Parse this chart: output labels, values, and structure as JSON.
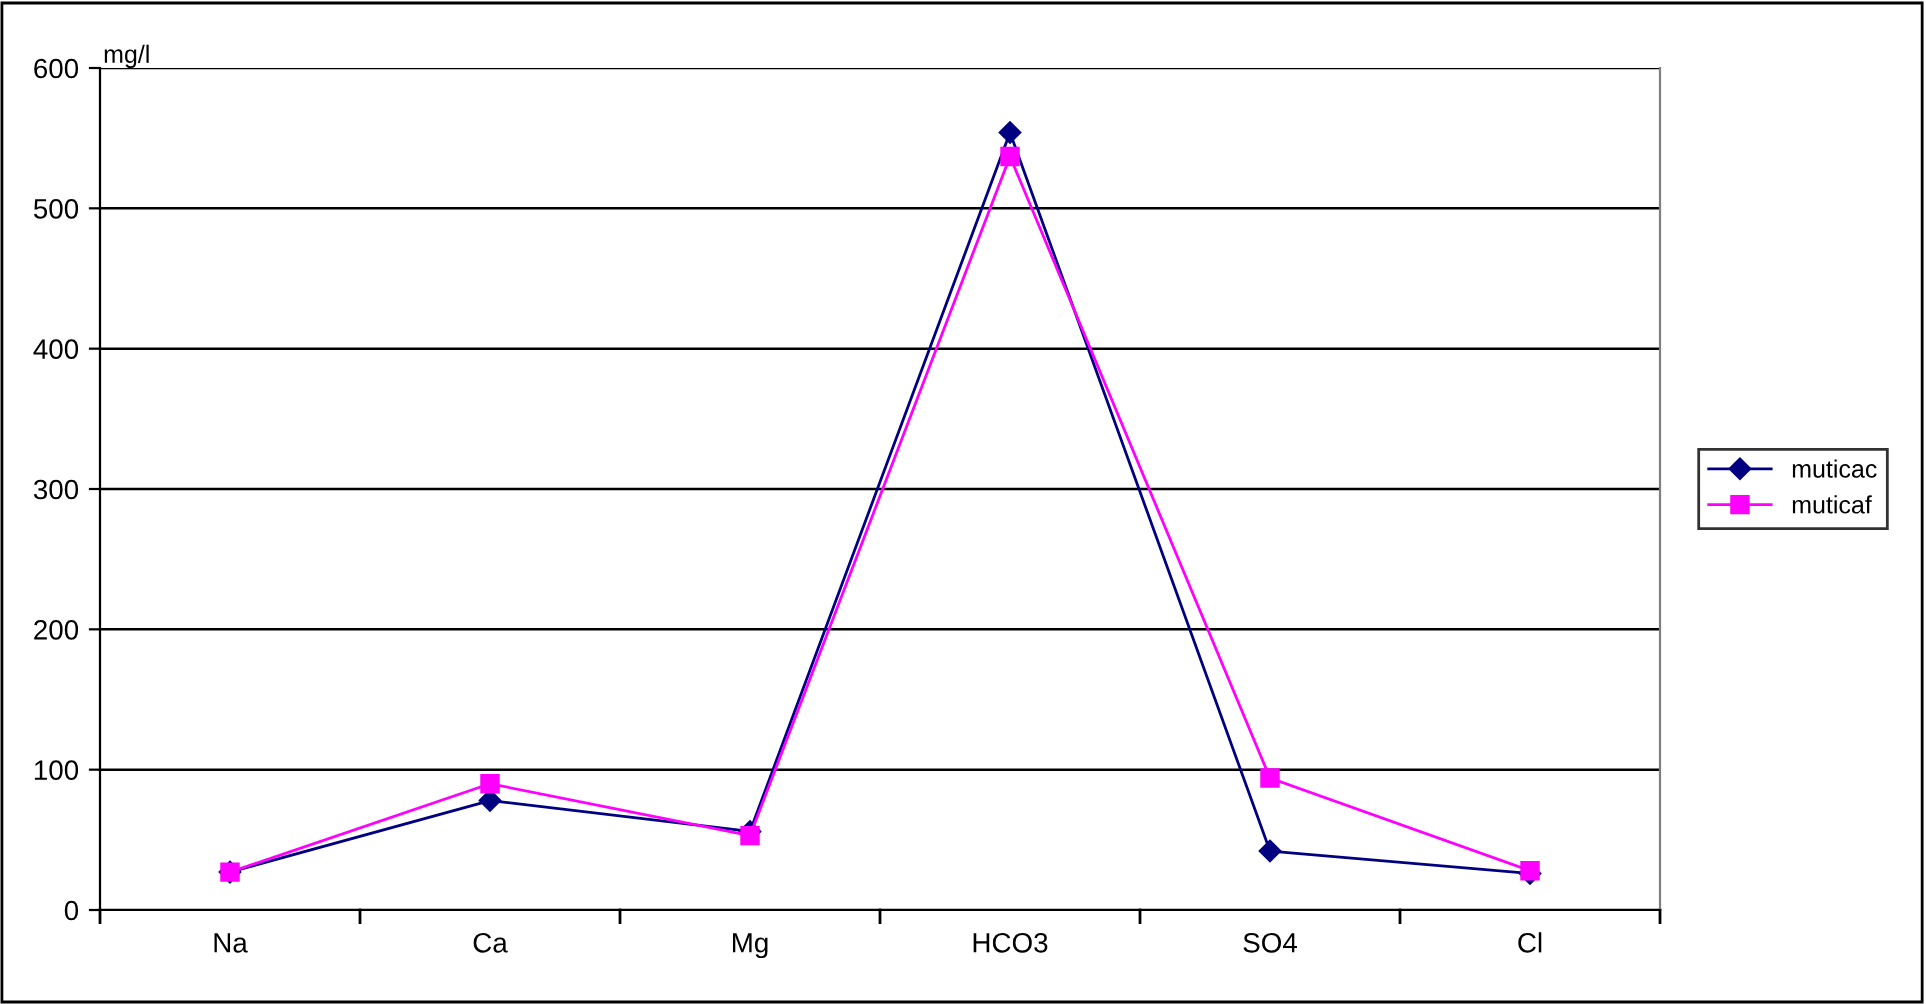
{
  "chart_data": {
    "type": "line",
    "ylabel": "mg/l",
    "categories": [
      "Na",
      "Ca",
      "Mg",
      "HCO3",
      "SO4",
      "Cl"
    ],
    "series": [
      {
        "name": "muticac",
        "color": "#000080",
        "marker": "diamond",
        "values": [
          27,
          78,
          56,
          554,
          42,
          26
        ]
      },
      {
        "name": "muticaf",
        "color": "#ff00ff",
        "marker": "square",
        "values": [
          27,
          90,
          53,
          537,
          94,
          28
        ]
      }
    ],
    "ylim": [
      0,
      600
    ],
    "yticks": [
      0,
      100,
      200,
      300,
      400,
      500,
      600
    ],
    "grid": "y",
    "legend": "right",
    "line_style": "solid"
  }
}
